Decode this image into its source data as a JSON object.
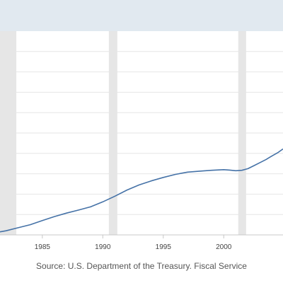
{
  "colors": {
    "header_band": "#e1e9f0",
    "line": "#4572a7",
    "recession": "#e6e6e6",
    "gridline": "#e6e6e6",
    "axis": "#c8c8c8"
  },
  "source": "Source: U.S. Department of the Treasury. Fiscal Service",
  "chart_data": {
    "type": "line",
    "title": "",
    "xlabel": "",
    "ylabel": "",
    "xlim": [
      1981.5,
      2004.9
    ],
    "ylim": [
      0,
      10
    ],
    "grid": true,
    "x_ticks": [
      1985,
      1990,
      1995,
      2000
    ],
    "x_tick_labels": [
      "1985",
      "1990",
      "1995",
      "2000"
    ],
    "y_gridlines": [
      1,
      2,
      3,
      4,
      5,
      6,
      7,
      8,
      9
    ],
    "y_tick_labels_visible": false,
    "recessions": [
      [
        1981.5,
        1982.85
      ],
      [
        1990.5,
        1991.2
      ],
      [
        2001.2,
        2001.85
      ]
    ],
    "series": [
      {
        "x": [
          1981.5,
          1982,
          1983,
          1984,
          1985,
          1986,
          1987,
          1988,
          1989,
          1990,
          1991,
          1992,
          1993,
          1994,
          1995,
          1996,
          1997,
          1998,
          1999,
          2000,
          2000.5,
          2001,
          2001.5,
          2002,
          2002.5,
          2003,
          2003.5,
          2004,
          2004.5,
          2004.9
        ],
        "y": [
          0.15,
          0.2,
          0.35,
          0.5,
          0.7,
          0.9,
          1.07,
          1.22,
          1.38,
          1.62,
          1.9,
          2.2,
          2.45,
          2.65,
          2.82,
          2.97,
          3.08,
          3.13,
          3.17,
          3.2,
          3.18,
          3.15,
          3.17,
          3.25,
          3.4,
          3.55,
          3.7,
          3.88,
          4.05,
          4.22
        ]
      }
    ]
  }
}
